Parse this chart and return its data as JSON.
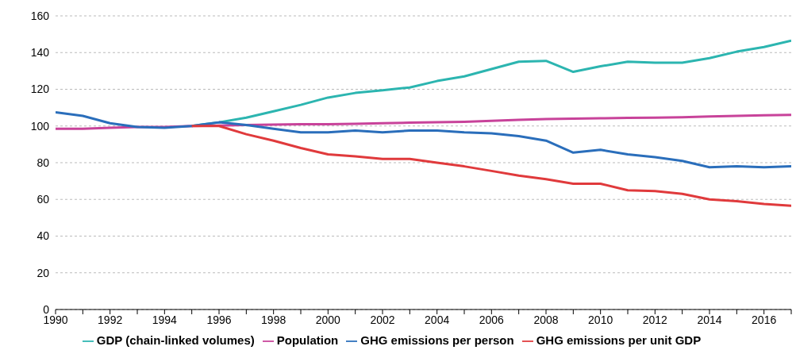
{
  "chart_data": {
    "type": "line",
    "x": [
      1990,
      1991,
      1992,
      1993,
      1994,
      1995,
      1996,
      1997,
      1998,
      1999,
      2000,
      2001,
      2002,
      2003,
      2004,
      2005,
      2006,
      2007,
      2008,
      2009,
      2010,
      2011,
      2012,
      2013,
      2014,
      2015,
      2016,
      2017
    ],
    "series": [
      {
        "name": "GDP (chain-linked volumes)",
        "color": "#2cb5b0",
        "values": [
          null,
          null,
          null,
          null,
          null,
          100,
          102,
          104.5,
          108,
          111.5,
          115.5,
          118,
          119.5,
          121,
          124.5,
          127,
          131,
          135,
          135.5,
          129.5,
          132.5,
          135,
          134.5,
          134.5,
          137,
          140.5,
          143,
          146.5
        ]
      },
      {
        "name": "Population",
        "color": "#c8439a",
        "values": [
          98.5,
          98.5,
          99,
          99.5,
          99.5,
          100,
          100.2,
          100.5,
          100.8,
          101,
          101,
          101.2,
          101.5,
          101.8,
          102,
          102.3,
          102.8,
          103.3,
          103.8,
          104,
          104.2,
          104.4,
          104.5,
          104.8,
          105.2,
          105.5,
          105.8,
          106
        ]
      },
      {
        "name": "GHG emissions per person",
        "color": "#2a6ebb",
        "values": [
          107.5,
          105.5,
          101.5,
          99.5,
          99,
          100,
          102,
          100.5,
          98.5,
          96.5,
          96.5,
          97.5,
          96.5,
          97.5,
          97.5,
          96.5,
          96,
          94.5,
          92,
          85.5,
          87,
          84.5,
          83,
          81,
          77.5,
          78,
          77.5,
          78
        ]
      },
      {
        "name": "GHG emissions per unit GDP",
        "color": "#e03a3c",
        "values": [
          null,
          null,
          null,
          null,
          null,
          100,
          100,
          95.5,
          92,
          88,
          84.5,
          83.5,
          82,
          82,
          80,
          78,
          75.5,
          73,
          71,
          68.5,
          68.5,
          65,
          64.5,
          63,
          60,
          59,
          57.5,
          56.5
        ]
      }
    ],
    "xlim": [
      1990,
      2017
    ],
    "xticks": [
      1990,
      {
        "value": 1991,
        "label": null
      },
      1992,
      {
        "value": 1993,
        "label": null
      },
      1994,
      {
        "value": 1995,
        "label": null
      },
      1996,
      {
        "value": 1997,
        "label": null
      },
      1998,
      {
        "value": 1999,
        "label": null
      },
      2000,
      {
        "value": 2001,
        "label": null
      },
      2002,
      {
        "value": 2003,
        "label": null
      },
      2004,
      {
        "value": 2005,
        "label": null
      },
      2006,
      {
        "value": 2007,
        "label": null
      },
      2008,
      {
        "value": 2009,
        "label": null
      },
      2010,
      {
        "value": 2011,
        "label": null
      },
      2012,
      {
        "value": 2013,
        "label": null
      },
      2014,
      {
        "value": 2015,
        "label": null
      },
      2016,
      {
        "value": 2017,
        "label": null
      }
    ],
    "ylim": [
      0,
      160
    ],
    "yticks": [
      0,
      20,
      40,
      60,
      80,
      100,
      120,
      140,
      160
    ],
    "grid": "y",
    "legend": "bottom",
    "marker": "none",
    "line_style": "solid"
  }
}
